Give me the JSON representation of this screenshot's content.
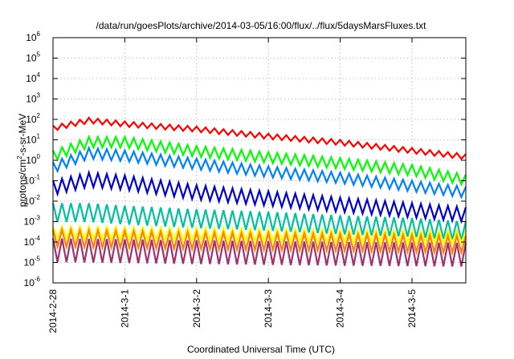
{
  "chart_data": {
    "type": "line",
    "title": "/data/run/goesPlots/archive/2014-03-05/16:00/flux/../flux/5daysMarsFluxes.txt",
    "xlabel": "Coordinated Universal Time (UTC)",
    "ylabel": "protons/cm²-s-sr-MeV",
    "ylabel_parts": {
      "pre": "protons/cm",
      "sup": "2",
      "post": "-s-sr-MeV"
    },
    "y_scale": "log",
    "ylim": [
      1e-06,
      1000000.0
    ],
    "y_ticks": [
      {
        "base": "10",
        "exp": "-6"
      },
      {
        "base": "10",
        "exp": "-5"
      },
      {
        "base": "10",
        "exp": "-4"
      },
      {
        "base": "10",
        "exp": "-3"
      },
      {
        "base": "10",
        "exp": "-2"
      },
      {
        "base": "10",
        "exp": "-1"
      },
      {
        "base": "10",
        "exp": "0"
      },
      {
        "base": "10",
        "exp": "1"
      },
      {
        "base": "10",
        "exp": "2"
      },
      {
        "base": "10",
        "exp": "3"
      },
      {
        "base": "10",
        "exp": "4"
      },
      {
        "base": "10",
        "exp": "5"
      },
      {
        "base": "10",
        "exp": "6"
      }
    ],
    "x_unit": "days",
    "xlim": [
      "2014-02-28",
      "2014-03-05 18:00"
    ],
    "x_ticks": [
      {
        "label": "2014-2-28",
        "date": "2014-02-28"
      },
      {
        "label": "2014-3-1",
        "date": "2014-03-01"
      },
      {
        "label": "2014-3-2",
        "date": "2014-03-02"
      },
      {
        "label": "2014-3-3",
        "date": "2014-03-03"
      },
      {
        "label": "2014-3-4",
        "date": "2014-03-04"
      },
      {
        "label": "2014-3-5",
        "date": "2014-03-05"
      }
    ],
    "grid": true,
    "legend": "none",
    "sawtooth_period_hours": 3,
    "series": [
      {
        "color": "#ff0000",
        "envelope": [
          [
            "2014-02-28 00:00",
            50
          ],
          [
            "2014-02-28 12:00",
            120
          ],
          [
            "2014-03-01 00:00",
            80
          ],
          [
            "2014-03-02 00:00",
            45
          ],
          [
            "2014-03-03 00:00",
            20
          ],
          [
            "2014-03-04 00:00",
            10
          ],
          [
            "2014-03-05 00:00",
            4
          ],
          [
            "2014-03-05 18:00",
            2
          ]
        ],
        "low_ratio": 0.55
      },
      {
        "color": "#00ff00",
        "envelope": [
          [
            "2014-02-28 00:00",
            3
          ],
          [
            "2014-02-28 12:00",
            14
          ],
          [
            "2014-03-01 00:00",
            14
          ],
          [
            "2014-03-02 00:00",
            5
          ],
          [
            "2014-03-03 00:00",
            2.5
          ],
          [
            "2014-03-04 00:00",
            1.3
          ],
          [
            "2014-03-05 00:00",
            0.6
          ],
          [
            "2014-03-05 18:00",
            0.2
          ]
        ],
        "low_ratio": 0.3
      },
      {
        "color": "#0080ff",
        "envelope": [
          [
            "2014-02-28 00:00",
            0.8
          ],
          [
            "2014-02-28 12:00",
            4
          ],
          [
            "2014-03-01 00:00",
            3
          ],
          [
            "2014-03-02 00:00",
            1.2
          ],
          [
            "2014-03-03 00:00",
            0.5
          ],
          [
            "2014-03-04 00:00",
            0.25
          ],
          [
            "2014-03-05 00:00",
            0.1
          ],
          [
            "2014-03-05 18:00",
            0.05
          ]
        ],
        "low_ratio": 0.3
      },
      {
        "color": "#0000c8",
        "envelope": [
          [
            "2014-02-28 00:00",
            0.1
          ],
          [
            "2014-02-28 12:00",
            0.25
          ],
          [
            "2014-03-01 00:00",
            0.18
          ],
          [
            "2014-03-02 00:00",
            0.06
          ],
          [
            "2014-03-03 00:00",
            0.03
          ],
          [
            "2014-03-04 00:00",
            0.015
          ],
          [
            "2014-03-05 00:00",
            0.008
          ],
          [
            "2014-03-05 18:00",
            0.005
          ]
        ],
        "low_ratio": 0.2
      },
      {
        "color": "#00c0a0",
        "envelope": [
          [
            "2014-02-28 00:00",
            0.008
          ],
          [
            "2014-02-28 12:00",
            0.008
          ],
          [
            "2014-03-01 00:00",
            0.006
          ],
          [
            "2014-03-02 00:00",
            0.004
          ],
          [
            "2014-03-03 00:00",
            0.003
          ],
          [
            "2014-03-04 00:00",
            0.002
          ],
          [
            "2014-03-05 00:00",
            0.0015
          ],
          [
            "2014-03-05 18:00",
            0.001
          ]
        ],
        "low_ratio": 0.12
      },
      {
        "color": "#ffff00",
        "envelope": [
          [
            "2014-02-28 00:00",
            0.0006
          ],
          [
            "2014-03-02 00:00",
            0.0005
          ],
          [
            "2014-03-04 00:00",
            0.0004
          ],
          [
            "2014-03-05 18:00",
            0.00035
          ]
        ],
        "low_ratio": 0.25
      },
      {
        "color": "#ff7f00",
        "envelope": [
          [
            "2014-02-28 00:00",
            0.0004
          ],
          [
            "2014-03-02 00:00",
            0.0003
          ],
          [
            "2014-03-04 00:00",
            0.00025
          ],
          [
            "2014-03-05 18:00",
            0.0002
          ]
        ],
        "low_ratio": 0.15
      },
      {
        "color": "#a03070",
        "envelope": [
          [
            "2014-02-28 00:00",
            0.00015
          ],
          [
            "2014-03-02 00:00",
            0.00012
          ],
          [
            "2014-03-04 00:00",
            0.0001
          ],
          [
            "2014-03-05 18:00",
            9e-05
          ]
        ],
        "low_ratio": 0.07
      }
    ]
  }
}
